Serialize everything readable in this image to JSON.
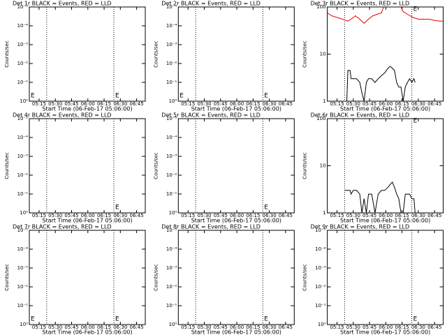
{
  "chart_data": [
    {
      "type": "line",
      "title": "Det 1r BLACK = Events, RED = LLD",
      "y_label": "Counts/sec",
      "x_label": "Start Time (06-Feb-17 05:06:00)",
      "log_y": true,
      "xlim": [
        "05:06",
        "06:53"
      ],
      "xticks": [
        "05:15",
        "05:30",
        "05:45",
        "06:00",
        "06:15",
        "06:30",
        "06:45"
      ],
      "ylim": [
        1,
        1e-05
      ],
      "yticks": [
        {
          "value": 1,
          "label": "10⁰"
        },
        {
          "value": 0.1,
          "label": "10⁻¹"
        },
        {
          "value": 0.01,
          "label": "10⁻²"
        },
        {
          "value": 0.001,
          "label": "10⁻³"
        },
        {
          "value": 0.0001,
          "label": "10⁻⁴"
        },
        {
          "value": 1e-05,
          "label": "10⁻⁵"
        }
      ],
      "vlines": [
        "05:22",
        "06:24"
      ],
      "event_marks": [
        {
          "x": "05:06",
          "y": 0.5,
          "label": "E"
        },
        {
          "x": "06:24",
          "y": 0.5,
          "label": "E"
        }
      ],
      "series": []
    },
    {
      "type": "line",
      "title": "Det 2r BLACK = Events, RED = LLD",
      "y_label": "Counts/sec",
      "x_label": "Start Time (06-Feb-17 05:06:00)",
      "log_y": true,
      "xlim": [
        "05:06",
        "06:53"
      ],
      "xticks": [
        "05:15",
        "05:30",
        "05:45",
        "06:00",
        "06:15",
        "06:30",
        "06:45"
      ],
      "ylim": [
        1,
        1e-05
      ],
      "yticks": [
        {
          "value": 1,
          "label": "10⁰"
        },
        {
          "value": 0.1,
          "label": "10⁻¹"
        },
        {
          "value": 0.01,
          "label": "10⁻²"
        },
        {
          "value": 0.001,
          "label": "10⁻³"
        },
        {
          "value": 0.0001,
          "label": "10⁻⁴"
        },
        {
          "value": 1e-05,
          "label": "10⁻⁵"
        }
      ],
      "vlines": [
        "05:22",
        "06:24"
      ],
      "event_marks": [
        {
          "x": "05:06",
          "y": 0.5,
          "label": "E"
        },
        {
          "x": "06:24",
          "y": 0.5,
          "label": "E"
        }
      ],
      "series": []
    },
    {
      "type": "line",
      "title": "Det 3r BLACK = Events, RED = LLD",
      "y_label": "Counts/sec",
      "x_label": "Start Time (06-Feb-17 05:06:00)",
      "log_y": true,
      "xlim": [
        "05:06",
        "06:53"
      ],
      "xticks": [
        "05:15",
        "05:30",
        "05:45",
        "06:00",
        "06:15",
        "06:30",
        "06:45"
      ],
      "ylim": [
        1,
        100
      ],
      "yticks": [
        1,
        10,
        100
      ],
      "vlines": [
        "05:22",
        "06:24"
      ],
      "event_marks": [
        {
          "x": "06:24",
          "y": 90,
          "label": "E"
        }
      ],
      "series": [
        {
          "color": "#000000",
          "x": [
            "05:22",
            "05:24",
            "05:25",
            "05:27",
            "05:28",
            "05:30",
            "05:33",
            "05:36",
            "05:38",
            "05:40",
            "05:42",
            "05:44",
            "05:47",
            "05:50",
            "05:53",
            "05:56",
            "05:59",
            "06:02",
            "06:04",
            "06:06",
            "06:08",
            "06:10",
            "06:12",
            "06:14",
            "06:16",
            "06:18",
            "06:20",
            "06:22",
            "06:24",
            "06:26",
            "06:27"
          ],
          "values": [
            1,
            1,
            4.5,
            4.5,
            3,
            3,
            3,
            2.5,
            1.5,
            1,
            2.5,
            3,
            3,
            2.5,
            3,
            3.5,
            4,
            5,
            5.5,
            5,
            4.5,
            2.5,
            2,
            2,
            1,
            2,
            2.5,
            3,
            2.5,
            3,
            2.5
          ]
        },
        {
          "color": "#e00000",
          "x": [
            "05:06",
            "05:10",
            "05:15",
            "05:20",
            "05:25",
            "05:28",
            "05:32",
            "05:36",
            "05:40",
            "05:44",
            "05:48",
            "05:52",
            "05:56",
            "05:58",
            "06:05",
            "06:14",
            "06:16",
            "06:20",
            "06:25",
            "06:30",
            "06:35",
            "06:40",
            "06:45",
            "06:50",
            "06:53"
          ],
          "values": [
            75,
            65,
            60,
            55,
            50,
            55,
            65,
            55,
            45,
            55,
            65,
            70,
            75,
            100,
            null,
            100,
            80,
            70,
            60,
            55,
            55,
            55,
            52,
            50,
            50
          ]
        }
      ]
    },
    {
      "type": "line",
      "title": "Det 4r BLACK = Events, RED = LLD",
      "y_label": "Counts/sec",
      "x_label": "Start Time (06-Feb-17 05:06:00)",
      "log_y": true,
      "xlim": [
        "05:06",
        "06:53"
      ],
      "xticks": [
        "05:15",
        "05:30",
        "05:45",
        "06:00",
        "06:15",
        "06:30",
        "06:45"
      ],
      "ylim": [
        1,
        1e-05
      ],
      "yticks": [
        {
          "value": 1,
          "label": "10⁰"
        },
        {
          "value": 0.1,
          "label": "10⁻¹"
        },
        {
          "value": 0.01,
          "label": "10⁻²"
        },
        {
          "value": 0.001,
          "label": "10⁻³"
        },
        {
          "value": 0.0001,
          "label": "10⁻⁴"
        },
        {
          "value": 1e-05,
          "label": "10⁻⁵"
        }
      ],
      "vlines": [
        "05:22",
        "06:24"
      ],
      "event_marks": [
        {
          "x": "06:24",
          "y": 0.5,
          "label": "E"
        }
      ],
      "series": []
    },
    {
      "type": "line",
      "title": "Det 5r BLACK = Events, RED = LLD",
      "y_label": "Counts/sec",
      "x_label": "Start Time (06-Feb-17 05:06:00)",
      "log_y": true,
      "xlim": [
        "05:06",
        "06:53"
      ],
      "xticks": [
        "05:15",
        "05:30",
        "05:45",
        "06:00",
        "06:15",
        "06:30",
        "06:45"
      ],
      "ylim": [
        1,
        1e-05
      ],
      "yticks": [
        {
          "value": 1,
          "label": "10⁰"
        },
        {
          "value": 0.1,
          "label": "10⁻¹"
        },
        {
          "value": 0.01,
          "label": "10⁻²"
        },
        {
          "value": 0.001,
          "label": "10⁻³"
        },
        {
          "value": 0.0001,
          "label": "10⁻⁴"
        },
        {
          "value": 1e-05,
          "label": "10⁻⁵"
        }
      ],
      "vlines": [
        "05:22",
        "06:24"
      ],
      "event_marks": [
        {
          "x": "06:24",
          "y": 0.5,
          "label": "E"
        }
      ],
      "series": []
    },
    {
      "type": "line",
      "title": "Det 6r BLACK = Events, RED = LLD",
      "y_label": "Counts/sec",
      "x_label": "Start Time (06-Feb-17 05:06:00)",
      "log_y": true,
      "xlim": [
        "05:06",
        "06:53"
      ],
      "xticks": [
        "05:15",
        "05:30",
        "05:45",
        "06:00",
        "06:15",
        "06:30",
        "06:45"
      ],
      "ylim": [
        1,
        100
      ],
      "yticks": [
        1,
        10,
        100
      ],
      "vlines": [
        "05:22",
        "06:24"
      ],
      "event_marks": [
        {
          "x": "06:24",
          "y": 90,
          "label": "E"
        }
      ],
      "series": [
        {
          "color": "#000000",
          "x": [
            "05:22",
            "05:24",
            "05:25",
            "05:27",
            "05:28",
            "05:30",
            "05:33",
            "05:36",
            "05:38",
            "05:40",
            "05:42",
            "05:44",
            "05:47",
            "05:50",
            "05:53",
            "05:56",
            "05:59",
            "06:02",
            "06:04",
            "06:06",
            "06:08",
            "06:10",
            "06:12",
            "06:14",
            "06:16",
            "06:18",
            "06:20",
            "06:22",
            "06:24",
            "06:26",
            "06:27"
          ],
          "values": [
            3,
            3,
            3,
            3,
            2.5,
            3,
            3,
            2.5,
            1,
            2,
            1,
            2.5,
            2.5,
            1,
            2.5,
            3,
            3,
            3.5,
            4,
            4.5,
            3.5,
            2.5,
            2,
            1,
            1,
            2.5,
            2.5,
            2.5,
            2,
            2,
            1
          ]
        }
      ]
    },
    {
      "type": "line",
      "title": "Det 7r BLACK = Events, RED = LLD",
      "y_label": "Counts/sec",
      "x_label": "Start Time (06-Feb-17 05:06:00)",
      "log_y": true,
      "xlim": [
        "05:06",
        "06:53"
      ],
      "xticks": [
        "05:15",
        "05:30",
        "05:45",
        "06:00",
        "06:15",
        "06:30",
        "06:45"
      ],
      "ylim": [
        1,
        1e-05
      ],
      "yticks": [
        {
          "value": 1,
          "label": "10⁰"
        },
        {
          "value": 0.1,
          "label": "10⁻¹"
        },
        {
          "value": 0.01,
          "label": "10⁻²"
        },
        {
          "value": 0.001,
          "label": "10⁻³"
        },
        {
          "value": 0.0001,
          "label": "10⁻⁴"
        },
        {
          "value": 1e-05,
          "label": "10⁻⁵"
        }
      ],
      "vlines": [
        "05:22",
        "06:24"
      ],
      "event_marks": [
        {
          "x": "05:06",
          "y": 0.5,
          "label": "E"
        },
        {
          "x": "06:24",
          "y": 0.5,
          "label": "E"
        }
      ],
      "series": []
    },
    {
      "type": "line",
      "title": "Det 8r BLACK = Events, RED = LLD",
      "y_label": "Counts/sec",
      "x_label": "Start Time (06-Feb-17 05:06:00)",
      "log_y": true,
      "xlim": [
        "05:06",
        "06:53"
      ],
      "xticks": [
        "05:15",
        "05:30",
        "05:45",
        "06:00",
        "06:15",
        "06:30",
        "06:45"
      ],
      "ylim": [
        1,
        1e-05
      ],
      "yticks": [
        {
          "value": 1,
          "label": "10⁰"
        },
        {
          "value": 0.1,
          "label": "10⁻¹"
        },
        {
          "value": 0.01,
          "label": "10⁻²"
        },
        {
          "value": 0.001,
          "label": "10⁻³"
        },
        {
          "value": 0.0001,
          "label": "10⁻⁴"
        },
        {
          "value": 1e-05,
          "label": "10⁻⁵"
        }
      ],
      "vlines": [
        "05:22",
        "06:24"
      ],
      "event_marks": [
        {
          "x": "06:24",
          "y": 0.5,
          "label": "E"
        }
      ],
      "series": []
    },
    {
      "type": "line",
      "title": "Det 9r BLACK = Events, RED = LLD",
      "y_label": "Counts/sec",
      "x_label": "Start Time (06-Feb-17 05:06:00)",
      "log_y": true,
      "xlim": [
        "05:06",
        "06:53"
      ],
      "xticks": [
        "05:15",
        "05:30",
        "05:45",
        "06:00",
        "06:15",
        "06:30",
        "06:45"
      ],
      "ylim": [
        1,
        1e-05
      ],
      "yticks": [
        {
          "value": 1,
          "label": "10⁰"
        },
        {
          "value": 0.1,
          "label": "10⁻¹"
        },
        {
          "value": 0.01,
          "label": "10⁻²"
        },
        {
          "value": 0.001,
          "label": "10⁻³"
        },
        {
          "value": 0.0001,
          "label": "10⁻⁴"
        },
        {
          "value": 1e-05,
          "label": "10⁻⁵"
        }
      ],
      "vlines": [
        "05:22",
        "06:24"
      ],
      "event_marks": [
        {
          "x": "06:24",
          "y": 0.5,
          "label": "E"
        }
      ],
      "series": []
    }
  ]
}
